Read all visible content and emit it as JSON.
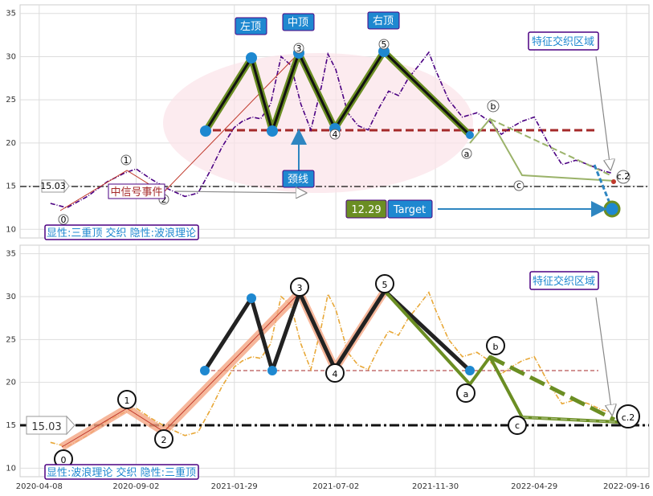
{
  "chart_data": [
    {
      "type": "line",
      "panel": "top",
      "ylim": [
        9,
        36
      ],
      "yticks": [
        10,
        15,
        20,
        25,
        30,
        35
      ],
      "grid": true,
      "series": [
        {
          "color": "#4b0082",
          "style": "dash-dot",
          "x": [
            "2020-04-25",
            "2020-05-20",
            "2020-06-20",
            "2020-07-20",
            "2020-08-15",
            "2020-09-02",
            "2020-09-25",
            "2020-10-20",
            "2020-11-15",
            "2020-12-05",
            "2020-12-25",
            "2021-01-10",
            "2021-01-29",
            "2021-02-10",
            "2021-02-25",
            "2021-03-10",
            "2021-03-25",
            "2021-04-10",
            "2021-04-25",
            "2021-05-10",
            "2021-05-25",
            "2021-06-10",
            "2021-06-20",
            "2021-07-02",
            "2021-07-20",
            "2021-08-05",
            "2021-08-20",
            "2021-09-05",
            "2021-09-20",
            "2021-10-05",
            "2021-10-20",
            "2021-11-05",
            "2021-11-20",
            "2021-11-30",
            "2021-12-20",
            "2022-01-10",
            "2022-02-01",
            "2022-02-20",
            "2022-03-10",
            "2022-03-25",
            "2022-04-10",
            "2022-04-29",
            "2022-05-20",
            "2022-06-10",
            "2022-07-01",
            "2022-07-20",
            "2022-08-10",
            "2022-08-25"
          ],
          "y": [
            13.0,
            12.5,
            13.8,
            15.5,
            16.5,
            17.0,
            15.8,
            14.7,
            13.8,
            14.2,
            17.0,
            19.5,
            21.8,
            22.5,
            23.0,
            22.8,
            24.5,
            30.0,
            29.0,
            24.5,
            21.5,
            26.5,
            30.3,
            28.5,
            23.5,
            22.0,
            21.5,
            24.0,
            26.0,
            25.5,
            27.5,
            29.0,
            30.5,
            28.5,
            25.0,
            23.0,
            23.5,
            22.5,
            21.0,
            21.8,
            22.5,
            23.0,
            20.0,
            17.5,
            18.0,
            17.5,
            16.8,
            16.5
          ]
        }
      ]
    },
    {
      "type": "line",
      "panel": "bottom",
      "ylim": [
        9,
        36
      ],
      "yticks": [
        10,
        15,
        20,
        25,
        30,
        35
      ],
      "grid": true,
      "xticks": [
        "2020-04-08",
        "2020-09-02",
        "2021-01-29",
        "2021-07-02",
        "2021-11-30",
        "2022-04-29",
        "2022-09-16"
      ],
      "series": [
        {
          "color": "#e8a838",
          "style": "dash-dot",
          "x": [
            "2020-04-25",
            "2020-05-20",
            "2020-06-20",
            "2020-07-20",
            "2020-08-15",
            "2020-09-02",
            "2020-09-25",
            "2020-10-20",
            "2020-11-15",
            "2020-12-05",
            "2020-12-25",
            "2021-01-10",
            "2021-01-29",
            "2021-02-10",
            "2021-02-25",
            "2021-03-10",
            "2021-03-25",
            "2021-04-10",
            "2021-04-25",
            "2021-05-10",
            "2021-05-25",
            "2021-06-10",
            "2021-06-20",
            "2021-07-02",
            "2021-07-20",
            "2021-08-05",
            "2021-08-20",
            "2021-09-05",
            "2021-09-20",
            "2021-10-05",
            "2021-10-20",
            "2021-11-05",
            "2021-11-20",
            "2021-11-30",
            "2021-12-20",
            "2022-01-10",
            "2022-02-01",
            "2022-02-20",
            "2022-03-10",
            "2022-03-25",
            "2022-04-10",
            "2022-04-29",
            "2022-05-20",
            "2022-06-10",
            "2022-07-01",
            "2022-07-20",
            "2022-08-10",
            "2022-08-25"
          ],
          "y": [
            13.0,
            12.5,
            13.8,
            15.5,
            16.5,
            17.0,
            15.8,
            14.7,
            13.8,
            14.2,
            17.0,
            19.5,
            21.8,
            22.5,
            23.0,
            22.8,
            24.5,
            30.0,
            29.0,
            24.5,
            21.5,
            26.5,
            30.3,
            28.5,
            23.5,
            22.0,
            21.5,
            24.0,
            26.0,
            25.5,
            27.5,
            29.0,
            30.5,
            28.5,
            25.0,
            23.0,
            23.5,
            22.5,
            21.0,
            21.8,
            22.5,
            23.0,
            20.0,
            17.5,
            18.0,
            17.5,
            16.8,
            16.5
          ]
        }
      ]
    }
  ],
  "labels": {
    "price_line": "15.03",
    "target_value": "12.29",
    "target_label": "Target",
    "left_top": "左顶",
    "mid_top": "中顶",
    "right_top": "右顶",
    "neckline": "颈线",
    "event": "中信号事件",
    "zone": "特征交织区域",
    "top_caption": "显性:三重顶 交织 隐性:波浪理论",
    "bottom_caption": "显性:波浪理论 交织 隐性:三重顶"
  },
  "wave": {
    "numbers": [
      "0",
      "1",
      "2",
      "3",
      "4",
      "5"
    ],
    "letters": [
      "a",
      "b",
      "c",
      "c.2"
    ]
  },
  "colors": {
    "accent_blue": "#1e88d0",
    "olive": "#6b8e23",
    "dark_red": "#a52a2a",
    "salmon": "#f4a582",
    "pink_zone": "#fbe3e8",
    "purple": "#4b0082"
  }
}
